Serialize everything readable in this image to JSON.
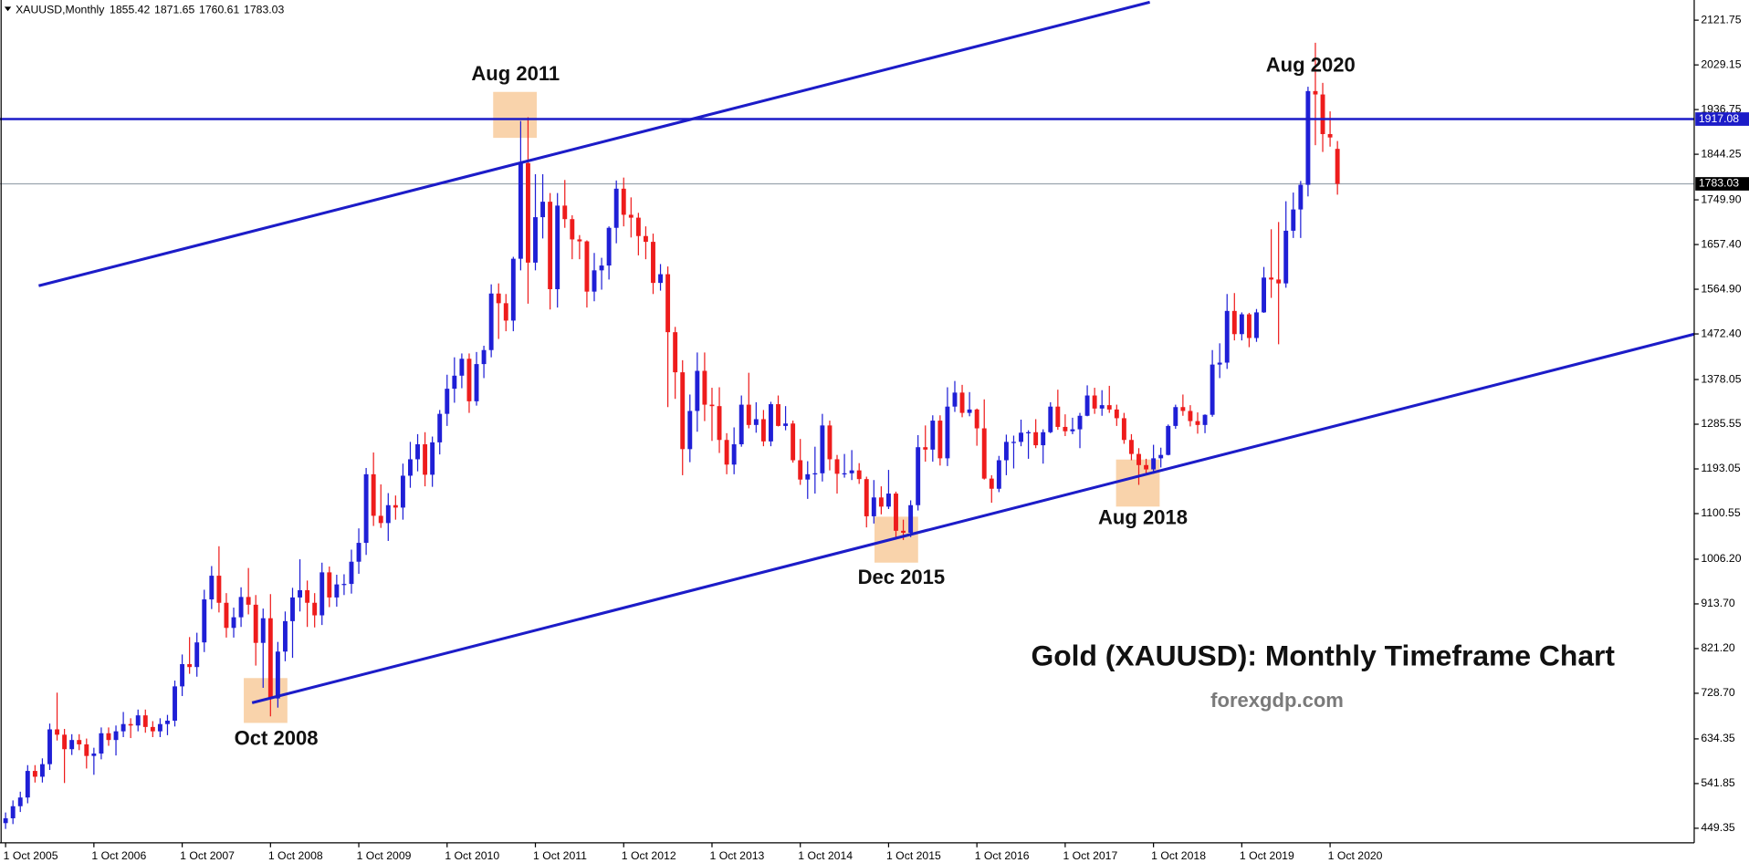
{
  "chart_data": {
    "type": "candlestick",
    "symbol": "XAUUSD,Monthly",
    "title": "Gold (XAUUSD): Monthly Timeframe Chart",
    "subtitle": "forexgdp.com",
    "up_color": "#1f1fd6",
    "down_color": "#ee1c1c",
    "ylim": [
      419.2,
      2163.5
    ],
    "yticks": [
      2121.75,
      2029.15,
      1936.75,
      1844.25,
      {
        "value": 1749.9,
        "label": "1749.90"
      },
      {
        "value": 1657.4,
        "label": "1657.40"
      },
      {
        "value": 1564.9,
        "label": "1564.90"
      },
      {
        "value": 1472.4,
        "label": "1472.40"
      },
      1378.05,
      1285.55,
      1193.05,
      1100.55,
      {
        "value": 1006.2,
        "label": "1006.20"
      },
      {
        "value": 913.7,
        "label": "913.70"
      },
      {
        "value": 821.2,
        "label": "821.20"
      },
      {
        "value": 728.7,
        "label": "728.70"
      },
      634.35,
      541.85,
      449.35
    ],
    "xticks": [
      {
        "value": 0,
        "label": "1 Oct 2005"
      },
      {
        "value": 12,
        "label": "1 Oct 2006"
      },
      {
        "value": 24,
        "label": "1 Oct 2007"
      },
      {
        "value": 36,
        "label": "1 Oct 2008"
      },
      {
        "value": 48,
        "label": "1 Oct 2009"
      },
      {
        "value": 60,
        "label": "1 Oct 2010"
      },
      {
        "value": 72,
        "label": "1 Oct 2011"
      },
      {
        "value": 84,
        "label": "1 Oct 2012"
      },
      {
        "value": 96,
        "label": "1 Oct 2013"
      },
      {
        "value": 108,
        "label": "1 Oct 2014"
      },
      {
        "value": 120,
        "label": "1 Oct 2015"
      },
      {
        "value": 132,
        "label": "1 Oct 2016"
      },
      {
        "value": 144,
        "label": "1 Oct 2017"
      },
      {
        "value": 156,
        "label": "1 Oct 2018"
      },
      {
        "value": 168,
        "label": "1 Oct 2019"
      },
      {
        "value": 180,
        "label": "1 Oct 2020"
      }
    ],
    "hlines": [
      {
        "value": 1917.08,
        "color": "#1c1cc8"
      }
    ],
    "trendlines": [
      {
        "x": [
          4.5,
          155.5
        ],
        "y": [
          1572,
          2159
        ],
        "color": "#1c1cc8"
      },
      {
        "x": [
          33.5,
          229.5
        ],
        "y": [
          709,
          1472
        ],
        "color": "#1c1cc8"
      }
    ],
    "annotations": [
      {
        "text": "Aug 2011"
      },
      {
        "text": "Oct 2008"
      },
      {
        "text": "Dec 2015"
      },
      {
        "text": "Aug 2018"
      },
      {
        "text": "Aug 2020"
      }
    ],
    "candles": [
      [
        460,
        482,
        448,
        470
      ],
      [
        470,
        507,
        458,
        495
      ],
      [
        495,
        525,
        483,
        513
      ],
      [
        513,
        580,
        501,
        568
      ],
      [
        568,
        580,
        544,
        556
      ],
      [
        556,
        594,
        544,
        582
      ],
      [
        582,
        666,
        570,
        654
      ],
      [
        654,
        730,
        631,
        643
      ],
      [
        643,
        655,
        543,
        613
      ],
      [
        613,
        644,
        601,
        632
      ],
      [
        632,
        644,
        611,
        623
      ],
      [
        623,
        635,
        573,
        599
      ],
      [
        599,
        616,
        560,
        604
      ],
      [
        604,
        658,
        592,
        646
      ],
      [
        646,
        658,
        620,
        632
      ],
      [
        632,
        662,
        600,
        650
      ],
      [
        650,
        690,
        638,
        665
      ],
      [
        665,
        677,
        636,
        662
      ],
      [
        662,
        695,
        650,
        683
      ],
      [
        683,
        695,
        647,
        659
      ],
      [
        659,
        671,
        638,
        650
      ],
      [
        650,
        677,
        638,
        665
      ],
      [
        665,
        684,
        642,
        672
      ],
      [
        672,
        755,
        660,
        743
      ],
      [
        743,
        809,
        723,
        789
      ],
      [
        789,
        845,
        769,
        783
      ],
      [
        783,
        854,
        763,
        834
      ],
      [
        834,
        943,
        814,
        923
      ],
      [
        923,
        992,
        903,
        972
      ],
      [
        972,
        1033,
        896,
        916
      ],
      [
        916,
        936,
        844,
        864
      ],
      [
        864,
        906,
        844,
        886
      ],
      [
        886,
        948,
        866,
        928
      ],
      [
        928,
        988,
        892,
        912
      ],
      [
        912,
        932,
        786,
        833
      ],
      [
        833,
        904,
        740,
        884
      ],
      [
        884,
        934,
        681,
        718
      ],
      [
        718,
        835,
        699,
        815
      ],
      [
        815,
        898,
        795,
        878
      ],
      [
        878,
        947,
        802,
        927
      ],
      [
        927,
        1006,
        898,
        942
      ],
      [
        942,
        962,
        866,
        916
      ],
      [
        916,
        936,
        865,
        890
      ],
      [
        890,
        999,
        870,
        979
      ],
      [
        979,
        991,
        907,
        927
      ],
      [
        927,
        974,
        908,
        954
      ],
      [
        954,
        975,
        932,
        955
      ],
      [
        955,
        1026,
        935,
        1001
      ],
      [
        1001,
        1070,
        976,
        1040
      ],
      [
        1040,
        1195,
        1015,
        1182
      ],
      [
        1182,
        1227,
        1075,
        1096
      ],
      [
        1096,
        1161,
        1071,
        1081
      ],
      [
        1081,
        1143,
        1044,
        1118
      ],
      [
        1118,
        1138,
        1088,
        1113
      ],
      [
        1113,
        1204,
        1088,
        1179
      ],
      [
        1179,
        1249,
        1154,
        1213
      ],
      [
        1213,
        1265,
        1188,
        1244
      ],
      [
        1244,
        1269,
        1157,
        1181
      ],
      [
        1181,
        1260,
        1156,
        1248
      ],
      [
        1248,
        1315,
        1223,
        1307
      ],
      [
        1307,
        1388,
        1282,
        1359
      ],
      [
        1359,
        1424,
        1330,
        1386
      ],
      [
        1386,
        1432,
        1360,
        1421
      ],
      [
        1421,
        1432,
        1309,
        1333
      ],
      [
        1333,
        1435,
        1324,
        1410
      ],
      [
        1410,
        1448,
        1381,
        1439
      ],
      [
        1439,
        1575,
        1424,
        1556
      ],
      [
        1556,
        1577,
        1462,
        1536
      ],
      [
        1536,
        1555,
        1478,
        1500
      ],
      [
        1500,
        1632,
        1478,
        1628
      ],
      [
        1628,
        1913,
        1604,
        1826
      ],
      [
        1826,
        1921,
        1535,
        1620
      ],
      [
        1620,
        1803,
        1604,
        1714
      ],
      [
        1714,
        1803,
        1670,
        1746
      ],
      [
        1746,
        1764,
        1523,
        1565
      ],
      [
        1565,
        1764,
        1527,
        1738
      ],
      [
        1738,
        1791,
        1692,
        1710
      ],
      [
        1710,
        1718,
        1627,
        1668
      ],
      [
        1668,
        1677,
        1627,
        1664
      ],
      [
        1664,
        1666,
        1527,
        1560
      ],
      [
        1560,
        1640,
        1540,
        1604
      ],
      [
        1604,
        1630,
        1564,
        1614
      ],
      [
        1614,
        1695,
        1585,
        1692
      ],
      [
        1692,
        1790,
        1660,
        1773
      ],
      [
        1773,
        1796,
        1695,
        1719
      ],
      [
        1719,
        1755,
        1672,
        1713
      ],
      [
        1713,
        1723,
        1635,
        1675
      ],
      [
        1675,
        1695,
        1627,
        1663
      ],
      [
        1663,
        1680,
        1555,
        1578
      ],
      [
        1578,
        1617,
        1562,
        1596
      ],
      [
        1596,
        1612,
        1321,
        1476
      ],
      [
        1476,
        1487,
        1338,
        1393
      ],
      [
        1393,
        1418,
        1180,
        1234
      ],
      [
        1234,
        1347,
        1207,
        1313
      ],
      [
        1313,
        1434,
        1270,
        1396
      ],
      [
        1396,
        1434,
        1292,
        1326
      ],
      [
        1326,
        1361,
        1251,
        1323
      ],
      [
        1323,
        1362,
        1226,
        1253
      ],
      [
        1253,
        1267,
        1182,
        1202
      ],
      [
        1202,
        1279,
        1182,
        1244
      ],
      [
        1244,
        1345,
        1239,
        1326
      ],
      [
        1326,
        1392,
        1277,
        1284
      ],
      [
        1284,
        1331,
        1268,
        1296
      ],
      [
        1296,
        1315,
        1240,
        1250
      ],
      [
        1250,
        1332,
        1240,
        1327
      ],
      [
        1327,
        1345,
        1281,
        1282
      ],
      [
        1282,
        1323,
        1273,
        1287
      ],
      [
        1287,
        1293,
        1206,
        1211
      ],
      [
        1211,
        1255,
        1160,
        1171
      ],
      [
        1171,
        1209,
        1131,
        1182
      ],
      [
        1182,
        1239,
        1142,
        1184
      ],
      [
        1184,
        1307,
        1167,
        1283
      ],
      [
        1283,
        1293,
        1190,
        1213
      ],
      [
        1213,
        1222,
        1142,
        1183
      ],
      [
        1183,
        1224,
        1175,
        1184
      ],
      [
        1184,
        1232,
        1170,
        1190
      ],
      [
        1190,
        1205,
        1162,
        1172
      ],
      [
        1172,
        1177,
        1072,
        1095
      ],
      [
        1095,
        1170,
        1080,
        1134
      ],
      [
        1134,
        1157,
        1099,
        1115
      ],
      [
        1115,
        1191,
        1110,
        1142
      ],
      [
        1142,
        1146,
        1052,
        1065
      ],
      [
        1065,
        1088,
        1046,
        1061
      ],
      [
        1061,
        1128,
        1052,
        1118
      ],
      [
        1118,
        1263,
        1107,
        1238
      ],
      [
        1238,
        1283,
        1208,
        1233
      ],
      [
        1233,
        1304,
        1208,
        1293
      ],
      [
        1293,
        1304,
        1200,
        1215
      ],
      [
        1215,
        1362,
        1199,
        1322
      ],
      [
        1322,
        1375,
        1311,
        1351
      ],
      [
        1351,
        1367,
        1300,
        1309
      ],
      [
        1309,
        1352,
        1302,
        1316
      ],
      [
        1316,
        1318,
        1241,
        1277
      ],
      [
        1277,
        1337,
        1171,
        1173
      ],
      [
        1173,
        1180,
        1123,
        1152
      ],
      [
        1152,
        1220,
        1145,
        1211
      ],
      [
        1211,
        1264,
        1180,
        1249
      ],
      [
        1249,
        1262,
        1194,
        1249
      ],
      [
        1249,
        1295,
        1240,
        1268
      ],
      [
        1268,
        1273,
        1214,
        1269
      ],
      [
        1269,
        1296,
        1236,
        1242
      ],
      [
        1242,
        1275,
        1204,
        1269
      ],
      [
        1269,
        1331,
        1267,
        1322
      ],
      [
        1322,
        1357,
        1274,
        1280
      ],
      [
        1280,
        1306,
        1261,
        1271
      ],
      [
        1271,
        1299,
        1265,
        1275
      ],
      [
        1275,
        1309,
        1236,
        1303
      ],
      [
        1303,
        1366,
        1302,
        1345
      ],
      [
        1345,
        1361,
        1307,
        1318
      ],
      [
        1318,
        1356,
        1303,
        1325
      ],
      [
        1325,
        1365,
        1309,
        1316
      ],
      [
        1316,
        1326,
        1282,
        1298
      ],
      [
        1298,
        1309,
        1245,
        1253
      ],
      [
        1253,
        1265,
        1211,
        1224
      ],
      [
        1224,
        1236,
        1160,
        1201
      ],
      [
        1201,
        1214,
        1180,
        1192
      ],
      [
        1192,
        1243,
        1183,
        1215
      ],
      [
        1215,
        1237,
        1196,
        1222
      ],
      [
        1222,
        1285,
        1221,
        1282
      ],
      [
        1282,
        1326,
        1276,
        1321
      ],
      [
        1321,
        1347,
        1303,
        1313
      ],
      [
        1313,
        1325,
        1281,
        1292
      ],
      [
        1292,
        1310,
        1266,
        1284
      ],
      [
        1284,
        1306,
        1267,
        1305
      ],
      [
        1305,
        1439,
        1301,
        1409
      ],
      [
        1409,
        1453,
        1381,
        1413
      ],
      [
        1413,
        1555,
        1400,
        1520
      ],
      [
        1520,
        1557,
        1459,
        1472
      ],
      [
        1472,
        1517,
        1459,
        1513
      ],
      [
        1513,
        1516,
        1445,
        1464
      ],
      [
        1464,
        1524,
        1456,
        1517
      ],
      [
        1517,
        1611,
        1516,
        1589
      ],
      [
        1589,
        1689,
        1547,
        1585
      ],
      [
        1585,
        1704,
        1451,
        1577
      ],
      [
        1577,
        1747,
        1568,
        1686
      ],
      [
        1686,
        1765,
        1671,
        1730
      ],
      [
        1730,
        1789,
        1671,
        1781
      ],
      [
        1781,
        1984,
        1757,
        1975
      ],
      [
        1975,
        2075,
        1863,
        1968
      ],
      [
        1968,
        1992,
        1849,
        1886
      ],
      [
        1886,
        1933,
        1860,
        1879
      ],
      [
        1855.42,
        1871.65,
        1760.61,
        1783.03
      ]
    ]
  }
}
